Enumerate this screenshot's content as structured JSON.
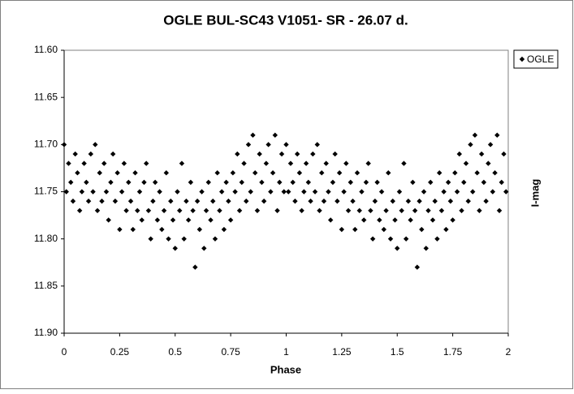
{
  "chart_data": {
    "type": "scatter",
    "title": "OGLE BUL-SC43  V1051- SR - 26.07 d.",
    "x_label": "Phase",
    "y_label": "I-mag",
    "xlim": [
      0,
      2
    ],
    "xticks": [
      0,
      0.25,
      0.5,
      0.75,
      1,
      1.25,
      1.5,
      1.75,
      2
    ],
    "ylim": [
      11.6,
      11.9
    ],
    "y_inverted": true,
    "yticks": [
      {
        "value": 11.6,
        "label": "11.60"
      },
      {
        "value": 11.65,
        "label": "11.65"
      },
      {
        "value": 11.7,
        "label": "11.70"
      },
      {
        "value": 11.75,
        "label": "11.75"
      },
      {
        "value": 11.8,
        "label": "11.80"
      },
      {
        "value": 11.85,
        "label": "11.85"
      },
      {
        "value": 11.9,
        "label": "11.90"
      }
    ],
    "legend": "top-right",
    "series": [
      {
        "name": "OGLE",
        "color": "#000000",
        "x": [
          0.0,
          0.01,
          0.02,
          0.03,
          0.04,
          0.05,
          0.06,
          0.07,
          0.08,
          0.09,
          0.1,
          0.11,
          0.12,
          0.13,
          0.14,
          0.15,
          0.16,
          0.17,
          0.18,
          0.19,
          0.2,
          0.21,
          0.22,
          0.23,
          0.24,
          0.25,
          0.26,
          0.27,
          0.28,
          0.29,
          0.3,
          0.31,
          0.32,
          0.33,
          0.34,
          0.35,
          0.36,
          0.37,
          0.38,
          0.39,
          0.4,
          0.41,
          0.42,
          0.43,
          0.44,
          0.45,
          0.46,
          0.47,
          0.48,
          0.49,
          0.5,
          0.51,
          0.52,
          0.53,
          0.54,
          0.55,
          0.56,
          0.57,
          0.58,
          0.59,
          0.6,
          0.61,
          0.62,
          0.63,
          0.64,
          0.65,
          0.66,
          0.67,
          0.68,
          0.69,
          0.7,
          0.71,
          0.72,
          0.73,
          0.74,
          0.75,
          0.76,
          0.77,
          0.78,
          0.79,
          0.8,
          0.81,
          0.82,
          0.83,
          0.84,
          0.85,
          0.86,
          0.87,
          0.88,
          0.89,
          0.9,
          0.91,
          0.92,
          0.93,
          0.94,
          0.95,
          0.96,
          0.97,
          0.98,
          0.99,
          1.0,
          1.01,
          1.02,
          1.03,
          1.04,
          1.05,
          1.06,
          1.07,
          1.08,
          1.09,
          1.1,
          1.11,
          1.12,
          1.13,
          1.14,
          1.15,
          1.16,
          1.17,
          1.18,
          1.19,
          1.2,
          1.21,
          1.22,
          1.23,
          1.24,
          1.25,
          1.26,
          1.27,
          1.28,
          1.29,
          1.3,
          1.31,
          1.32,
          1.33,
          1.34,
          1.35,
          1.36,
          1.37,
          1.38,
          1.39,
          1.4,
          1.41,
          1.42,
          1.43,
          1.44,
          1.45,
          1.46,
          1.47,
          1.48,
          1.49,
          1.5,
          1.51,
          1.52,
          1.53,
          1.54,
          1.55,
          1.56,
          1.57,
          1.58,
          1.59,
          1.6,
          1.61,
          1.62,
          1.63,
          1.64,
          1.65,
          1.66,
          1.67,
          1.68,
          1.69,
          1.7,
          1.71,
          1.72,
          1.73,
          1.74,
          1.75,
          1.76,
          1.77,
          1.78,
          1.79,
          1.8,
          1.81,
          1.82,
          1.83,
          1.84,
          1.85,
          1.86,
          1.87,
          1.88,
          1.89,
          1.9,
          1.91,
          1.92,
          1.93,
          1.94,
          1.95,
          1.96,
          1.97,
          1.98,
          1.99
        ],
        "y": [
          11.7,
          11.75,
          11.72,
          11.74,
          11.76,
          11.71,
          11.73,
          11.77,
          11.75,
          11.72,
          11.74,
          11.76,
          11.71,
          11.75,
          11.7,
          11.77,
          11.73,
          11.76,
          11.72,
          11.75,
          11.78,
          11.74,
          11.71,
          11.76,
          11.73,
          11.79,
          11.75,
          11.72,
          11.77,
          11.74,
          11.76,
          11.79,
          11.73,
          11.77,
          11.75,
          11.78,
          11.74,
          11.72,
          11.77,
          11.8,
          11.76,
          11.74,
          11.78,
          11.75,
          11.79,
          11.77,
          11.73,
          11.8,
          11.76,
          11.78,
          11.81,
          11.75,
          11.77,
          11.72,
          11.8,
          11.76,
          11.78,
          11.74,
          11.77,
          11.83,
          11.76,
          11.79,
          11.75,
          11.81,
          11.77,
          11.74,
          11.78,
          11.76,
          11.8,
          11.73,
          11.77,
          11.75,
          11.79,
          11.74,
          11.76,
          11.78,
          11.73,
          11.75,
          11.71,
          11.77,
          11.74,
          11.72,
          11.76,
          11.7,
          11.75,
          11.69,
          11.73,
          11.77,
          11.71,
          11.74,
          11.76,
          11.72,
          11.7,
          11.75,
          11.73,
          11.69,
          11.77,
          11.74,
          11.71,
          11.75,
          11.7,
          11.75,
          11.72,
          11.74,
          11.76,
          11.71,
          11.73,
          11.77,
          11.75,
          11.72,
          11.74,
          11.76,
          11.71,
          11.75,
          11.7,
          11.77,
          11.73,
          11.76,
          11.72,
          11.75,
          11.78,
          11.74,
          11.71,
          11.76,
          11.73,
          11.79,
          11.75,
          11.72,
          11.77,
          11.74,
          11.76,
          11.79,
          11.73,
          11.77,
          11.75,
          11.78,
          11.74,
          11.72,
          11.77,
          11.8,
          11.76,
          11.74,
          11.78,
          11.75,
          11.79,
          11.77,
          11.73,
          11.8,
          11.76,
          11.78,
          11.81,
          11.75,
          11.77,
          11.72,
          11.8,
          11.76,
          11.78,
          11.74,
          11.77,
          11.83,
          11.76,
          11.79,
          11.75,
          11.81,
          11.77,
          11.74,
          11.78,
          11.76,
          11.8,
          11.73,
          11.77,
          11.75,
          11.79,
          11.74,
          11.76,
          11.78,
          11.73,
          11.75,
          11.71,
          11.77,
          11.74,
          11.72,
          11.76,
          11.7,
          11.75,
          11.69,
          11.73,
          11.77,
          11.71,
          11.74,
          11.76,
          11.72,
          11.7,
          11.75,
          11.73,
          11.69,
          11.77,
          11.74,
          11.71,
          11.75
        ]
      }
    ]
  }
}
